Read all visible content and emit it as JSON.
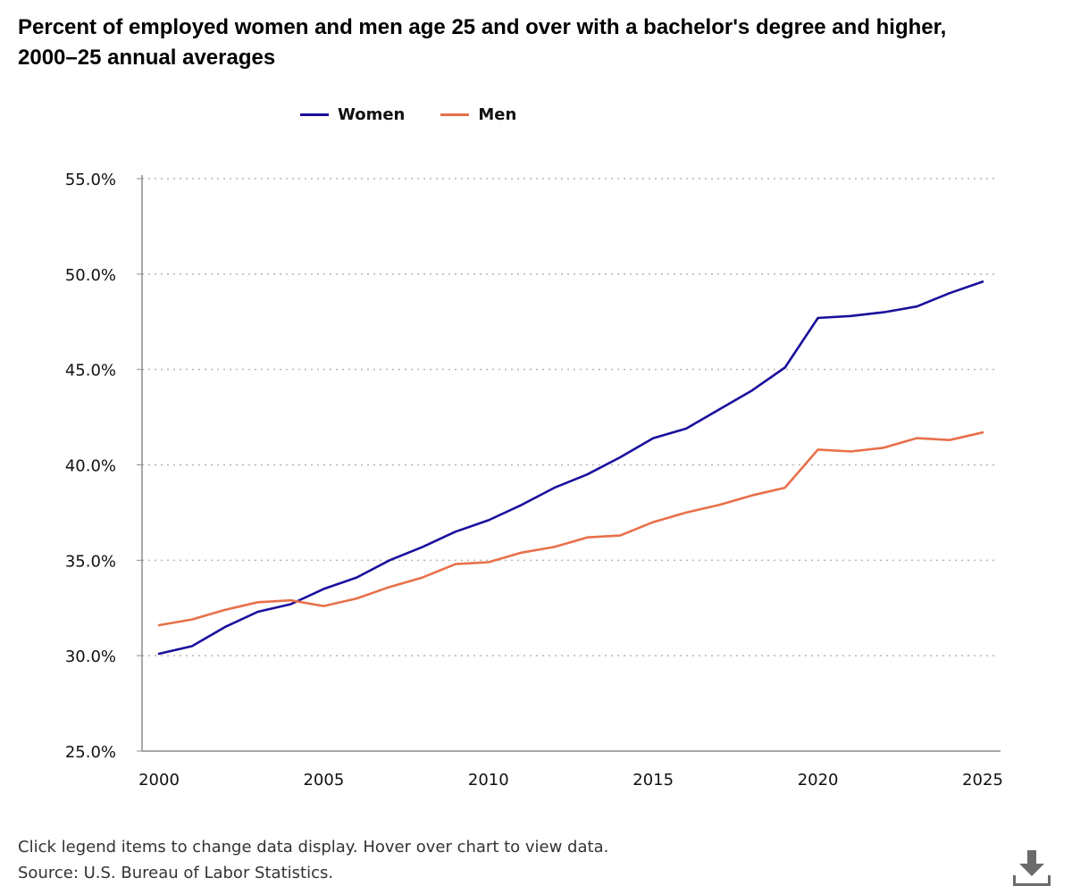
{
  "chart": {
    "title": "Percent of employed women and men age 25 and over with a bachelor's degree and higher, 2000–25 annual averages"
  },
  "legend": {
    "items": [
      {
        "label": "Women",
        "color": "#1a0f9c"
      },
      {
        "label": "Men",
        "color": "#e8704a"
      }
    ]
  },
  "footer": {
    "note": "Click legend items to change data display. Hover over chart to view data.",
    "source": "Source: U.S. Bureau of Labor Statistics."
  },
  "toolbar": {
    "download_icon": "download-icon"
  },
  "colors": {
    "axis": "#8c8c8c",
    "grid": "#b5b5b5",
    "women": "#1a0f9c",
    "men": "#e8704a"
  },
  "chart_data": {
    "type": "line",
    "title": "Percent of employed women and men age 25 and over with a bachelor's degree and higher, 2000–25 annual averages",
    "xlabel": "",
    "ylabel": "",
    "x": [
      2000,
      2001,
      2002,
      2003,
      2004,
      2005,
      2006,
      2007,
      2008,
      2009,
      2010,
      2011,
      2012,
      2013,
      2014,
      2015,
      2016,
      2017,
      2018,
      2019,
      2020,
      2021,
      2022,
      2023,
      2024,
      2025
    ],
    "xlim": [
      1999,
      2025.5
    ],
    "x_ticks": [
      2000,
      2005,
      2010,
      2015,
      2020,
      2025
    ],
    "ylim": [
      25,
      55
    ],
    "y_ticks": [
      25,
      30,
      35,
      40,
      45,
      50,
      55
    ],
    "y_tick_labels": [
      "25.0%",
      "30.0%",
      "35.0%",
      "40.0%",
      "45.0%",
      "50.0%",
      "55.0%"
    ],
    "grid": true,
    "grid_style": "dotted horizontal",
    "legend_position": "top",
    "series": [
      {
        "name": "Women",
        "color": "#1a0f9c",
        "values": [
          30.1,
          30.5,
          31.5,
          32.3,
          32.7,
          33.5,
          34.1,
          35.0,
          35.7,
          36.5,
          37.1,
          37.9,
          38.8,
          39.5,
          40.4,
          41.4,
          41.9,
          42.9,
          43.9,
          45.1,
          47.7,
          47.8,
          48.0,
          48.3,
          49.0,
          49.6
        ]
      },
      {
        "name": "Men",
        "color": "#e8704a",
        "values": [
          31.6,
          31.9,
          32.4,
          32.8,
          32.9,
          32.6,
          33.0,
          33.6,
          34.1,
          34.8,
          34.9,
          35.4,
          35.7,
          36.2,
          36.3,
          37.0,
          37.5,
          37.9,
          38.4,
          38.8,
          40.8,
          40.7,
          40.9,
          41.4,
          41.3,
          41.7
        ]
      }
    ]
  }
}
